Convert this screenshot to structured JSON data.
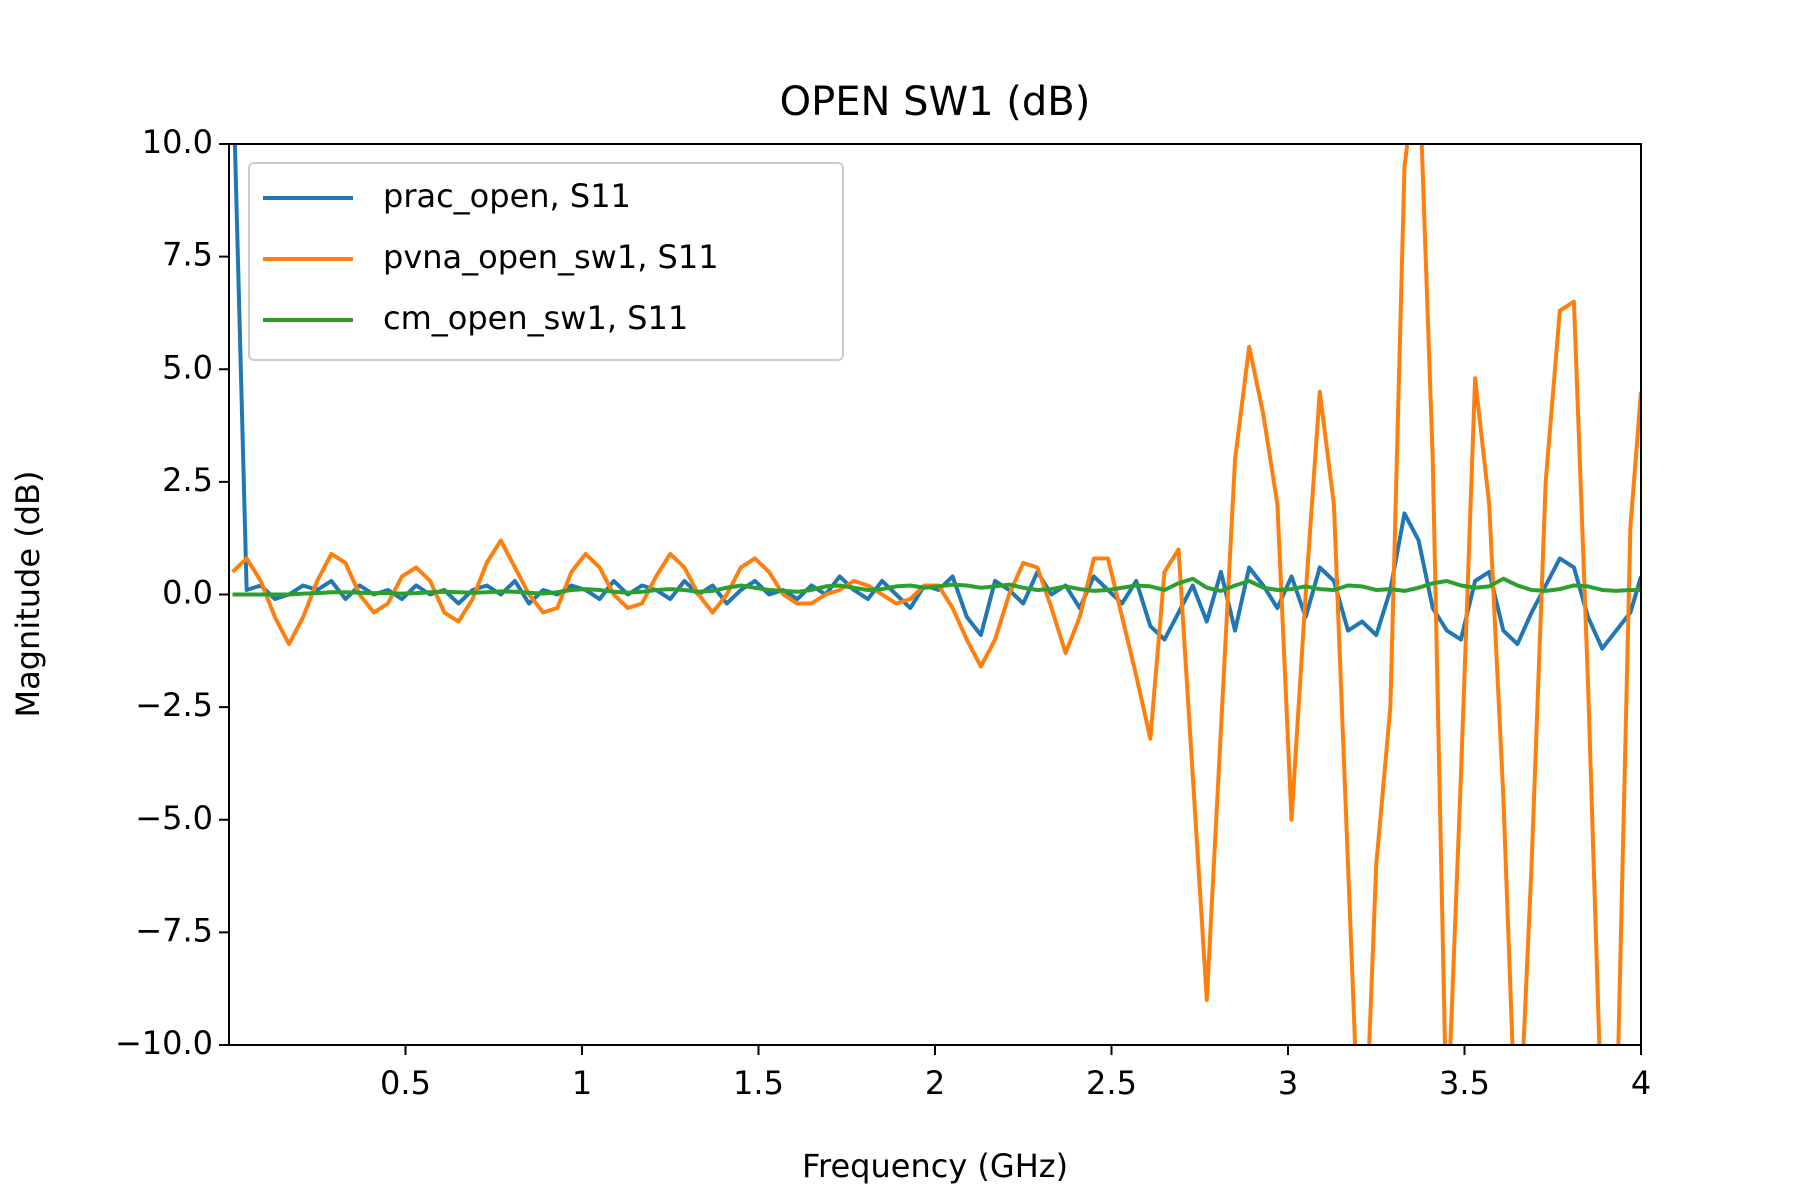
{
  "chart_data": {
    "type": "line",
    "title": "OPEN SW1 (dB)",
    "x_label": "Frequency (GHz)",
    "y_label": "Magnitude (dB)",
    "x": [
      0.01,
      0.05,
      0.09,
      0.13,
      0.17,
      0.21,
      0.25,
      0.29,
      0.33,
      0.37,
      0.41,
      0.45,
      0.49,
      0.53,
      0.57,
      0.61,
      0.65,
      0.69,
      0.73,
      0.77,
      0.81,
      0.85,
      0.89,
      0.93,
      0.97,
      1.01,
      1.05,
      1.09,
      1.13,
      1.17,
      1.21,
      1.25,
      1.29,
      1.33,
      1.37,
      1.41,
      1.45,
      1.49,
      1.53,
      1.57,
      1.61,
      1.65,
      1.69,
      1.73,
      1.77,
      1.81,
      1.85,
      1.89,
      1.93,
      1.97,
      2.01,
      2.05,
      2.09,
      2.13,
      2.17,
      2.21,
      2.25,
      2.29,
      2.33,
      2.37,
      2.41,
      2.45,
      2.49,
      2.53,
      2.57,
      2.61,
      2.65,
      2.69,
      2.73,
      2.77,
      2.81,
      2.85,
      2.89,
      2.93,
      2.97,
      3.01,
      3.05,
      3.09,
      3.13,
      3.17,
      3.21,
      3.25,
      3.29,
      3.33,
      3.37,
      3.41,
      3.45,
      3.49,
      3.53,
      3.57,
      3.61,
      3.65,
      3.69,
      3.73,
      3.77,
      3.81,
      3.85,
      3.89,
      3.93,
      3.97,
      4
    ],
    "series": [
      {
        "name": "prac_open, S11",
        "color": "#1f77b4",
        "values": [
          12,
          0.1,
          0.2,
          -0.1,
          0.0,
          0.2,
          0.1,
          0.3,
          -0.1,
          0.2,
          0.0,
          0.1,
          -0.1,
          0.2,
          0.0,
          0.1,
          -0.2,
          0.1,
          0.2,
          0.0,
          0.3,
          -0.2,
          0.1,
          0.0,
          0.2,
          0.1,
          -0.1,
          0.3,
          0.0,
          0.2,
          0.1,
          -0.1,
          0.3,
          0.0,
          0.2,
          -0.2,
          0.1,
          0.3,
          0.0,
          0.1,
          -0.1,
          0.2,
          0.0,
          0.4,
          0.1,
          -0.1,
          0.3,
          0.0,
          -0.3,
          0.2,
          0.1,
          0.4,
          -0.5,
          -0.9,
          0.3,
          0.1,
          -0.2,
          0.5,
          0.0,
          0.2,
          -0.3,
          0.4,
          0.1,
          -0.2,
          0.3,
          -0.7,
          -1.0,
          -0.4,
          0.2,
          -0.6,
          0.5,
          -0.8,
          0.6,
          0.2,
          -0.3,
          0.4,
          -0.5,
          0.6,
          0.3,
          -0.8,
          -0.6,
          -0.9,
          0.1,
          1.8,
          1.2,
          -0.3,
          -0.8,
          -1.0,
          0.3,
          0.5,
          -0.8,
          -1.1,
          -0.4,
          0.2,
          0.8,
          0.6,
          -0.5,
          -1.2,
          -0.8,
          -0.4,
          0.4
        ]
      },
      {
        "name": "pvna_open_sw1, S11",
        "color": "#ff7f0e",
        "values": [
          0.5,
          0.8,
          0.3,
          -0.5,
          -1.1,
          -0.5,
          0.3,
          0.9,
          0.7,
          0.0,
          -0.4,
          -0.2,
          0.4,
          0.6,
          0.3,
          -0.4,
          -0.6,
          -0.1,
          0.7,
          1.2,
          0.6,
          0.0,
          -0.4,
          -0.3,
          0.5,
          0.9,
          0.6,
          0.0,
          -0.3,
          -0.2,
          0.4,
          0.9,
          0.6,
          0.0,
          -0.4,
          0.0,
          0.6,
          0.8,
          0.5,
          0.0,
          -0.2,
          -0.2,
          0.0,
          0.1,
          0.3,
          0.2,
          0.0,
          -0.2,
          -0.1,
          0.2,
          0.2,
          -0.3,
          -1.0,
          -1.6,
          -1.0,
          0.0,
          0.7,
          0.6,
          -0.3,
          -1.3,
          -0.5,
          0.8,
          0.8,
          -0.5,
          -1.8,
          -3.2,
          0.5,
          1.0,
          -4.0,
          -9.0,
          -3.0,
          3.0,
          5.5,
          4.0,
          2.0,
          -5.0,
          0.0,
          4.5,
          2.0,
          -6.0,
          -14,
          -6,
          -2.5,
          9.5,
          12,
          3,
          -12,
          -4,
          4.8,
          2.0,
          -4.5,
          -13,
          -6,
          2.5,
          6.3,
          6.5,
          -2,
          -12,
          -12,
          1.5,
          4.5
        ]
      },
      {
        "name": "cm_open_sw1, S11",
        "color": "#2ca02c",
        "values": [
          0,
          0,
          0,
          0,
          0,
          0.02,
          0.03,
          0.05,
          0.05,
          0.04,
          0.03,
          0.03,
          0.02,
          0.03,
          0.05,
          0.06,
          0.05,
          0.04,
          0.05,
          0.07,
          0.06,
          0.04,
          0.02,
          0.05,
          0.1,
          0.12,
          0.1,
          0.06,
          0.04,
          0.06,
          0.1,
          0.12,
          0.1,
          0.06,
          0.08,
          0.15,
          0.2,
          0.15,
          0.1,
          0.08,
          0.06,
          0.1,
          0.18,
          0.2,
          0.15,
          0.1,
          0.12,
          0.18,
          0.2,
          0.15,
          0.18,
          0.22,
          0.2,
          0.15,
          0.18,
          0.22,
          0.15,
          0.1,
          0.12,
          0.18,
          0.12,
          0.08,
          0.1,
          0.15,
          0.2,
          0.18,
          0.1,
          0.25,
          0.35,
          0.15,
          0.08,
          0.2,
          0.3,
          0.15,
          0.1,
          0.12,
          0.18,
          0.12,
          0.1,
          0.2,
          0.18,
          0.1,
          0.12,
          0.08,
          0.15,
          0.25,
          0.3,
          0.2,
          0.15,
          0.18,
          0.35,
          0.2,
          0.1,
          0.08,
          0.12,
          0.2,
          0.18,
          0.1,
          0.08,
          0.1,
          0.1
        ]
      }
    ],
    "xlim": [
      0,
      4
    ],
    "xticks": [
      0.5,
      1,
      1.5,
      2,
      2.5,
      3,
      3.5,
      4
    ],
    "ylim": [
      -10,
      10
    ],
    "yticks": [
      {
        "value": -10,
        "label": "−10.0"
      },
      {
        "value": -7.5,
        "label": "−7.5"
      },
      {
        "value": -5,
        "label": "−5.0"
      },
      {
        "value": -2.5,
        "label": "−2.5"
      },
      {
        "value": 0,
        "label": "0.0"
      },
      {
        "value": 2.5,
        "label": "2.5"
      },
      {
        "value": 5,
        "label": "5.0"
      },
      {
        "value": 7.5,
        "label": "7.5"
      },
      {
        "value": 10,
        "label": "10.0"
      }
    ],
    "grid": false,
    "legend": "upper left"
  }
}
